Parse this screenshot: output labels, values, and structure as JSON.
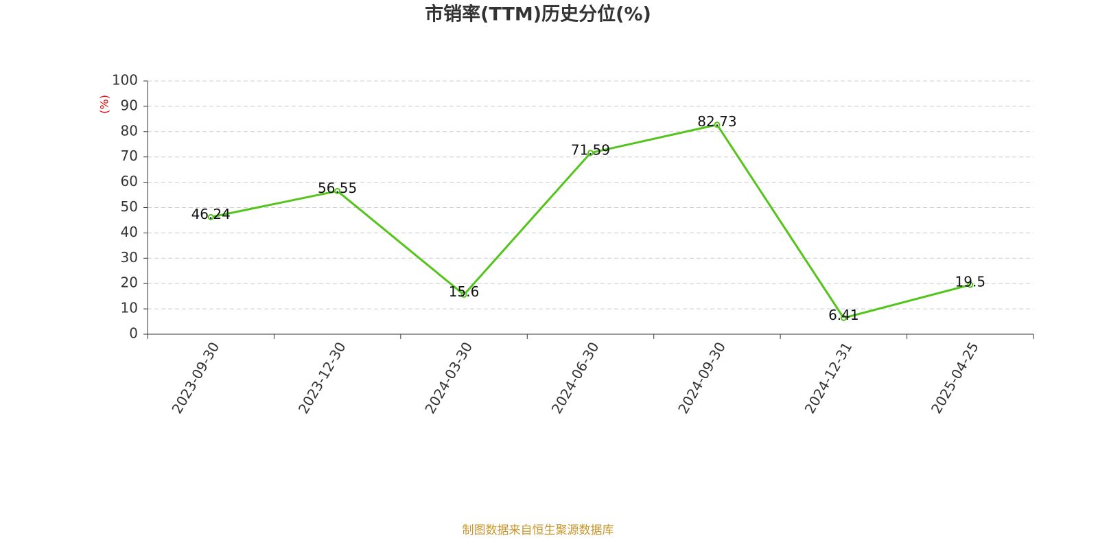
{
  "chart_data": {
    "type": "line",
    "title": "市销率(TTM)历史分位(%)",
    "y_label": "(%)",
    "categories": [
      "2023-09-30",
      "2023-12-30",
      "2024-03-30",
      "2024-06-30",
      "2024-09-30",
      "2024-12-31",
      "2025-04-25"
    ],
    "series": [
      {
        "name": "市销率(TTM)历史分位",
        "color": "#52c41a",
        "values": [
          46.24,
          56.55,
          15.6,
          71.59,
          82.73,
          6.41,
          19.5
        ]
      }
    ],
    "ylim": [
      0,
      100
    ],
    "yticks": [
      0,
      10,
      20,
      30,
      40,
      50,
      60,
      70,
      80,
      90,
      100
    ],
    "grid": true,
    "source": "制图数据来自恒生聚源数据库"
  }
}
